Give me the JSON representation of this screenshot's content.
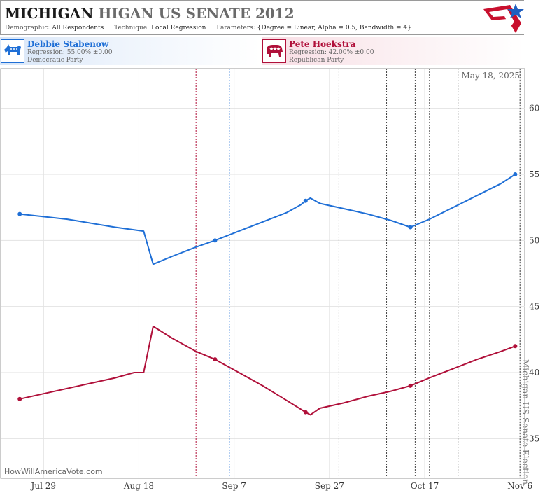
{
  "header": {
    "title_main": "MICHIGAN",
    "title_sub": "HIGAN US SENATE 2012",
    "demographic_label": "Demographic:",
    "demographic_value": "All Respondents",
    "technique_label": "Technique:",
    "technique_value": "Local Regression",
    "parameters_label": "Parameters:",
    "parameters_value": "{Degree = Linear, Alpha = 0.5, Bandwidth = 4}"
  },
  "candidates": [
    {
      "name": "Debbie Stabenow",
      "regression": "Regression: 55.00% ±0.00",
      "party": "Democratic Party",
      "color": "#1f6fd6",
      "icon": "donkey-icon"
    },
    {
      "name": "Pete Hoekstra",
      "regression": "Regression: 42.00% ±0.00",
      "party": "Republican Party",
      "color": "#b0103a",
      "icon": "elephant-icon"
    }
  ],
  "chart_data": {
    "type": "line",
    "date_label": "May 18, 2025",
    "event_label": "Michigan US Senate Election",
    "watermark": "HowWillAmericaVote.com",
    "x_range": [
      "2012-07-20",
      "2012-11-07"
    ],
    "x_ticks": [
      {
        "date": "2012-07-29",
        "label": "Jul 29"
      },
      {
        "date": "2012-08-18",
        "label": "Aug 18"
      },
      {
        "date": "2012-09-07",
        "label": "Sep 7"
      },
      {
        "date": "2012-09-27",
        "label": "Sep 27"
      },
      {
        "date": "2012-10-17",
        "label": "Oct 17"
      },
      {
        "date": "2012-11-06",
        "label": "Nov 6"
      }
    ],
    "y_range": [
      32,
      63
    ],
    "y_ticks": [
      35,
      40,
      45,
      50,
      55,
      60
    ],
    "grid": true,
    "vlines": [
      {
        "date": "2012-08-30",
        "color": "#b0103a",
        "style": "dotted"
      },
      {
        "date": "2012-09-06",
        "color": "#1f6fd6",
        "style": "dotted"
      },
      {
        "date": "2012-09-29",
        "color": "#444444",
        "style": "dotted"
      },
      {
        "date": "2012-10-09",
        "color": "#444444",
        "style": "dotted"
      },
      {
        "date": "2012-10-15",
        "color": "#444444",
        "style": "dotted"
      },
      {
        "date": "2012-10-18",
        "color": "#444444",
        "style": "dotted"
      },
      {
        "date": "2012-10-24",
        "color": "#444444",
        "style": "dotted"
      },
      {
        "date": "2012-11-06",
        "color": "#444444",
        "style": "dotted"
      }
    ],
    "series": [
      {
        "name": "Debbie Stabenow",
        "color": "#1f6fd6",
        "line": [
          [
            "2012-07-24",
            52.0
          ],
          [
            "2012-07-29",
            51.8
          ],
          [
            "2012-08-03",
            51.6
          ],
          [
            "2012-08-08",
            51.3
          ],
          [
            "2012-08-13",
            51.0
          ],
          [
            "2012-08-17",
            50.8
          ],
          [
            "2012-08-19",
            50.7
          ],
          [
            "2012-08-21",
            48.2
          ],
          [
            "2012-08-25",
            48.8
          ],
          [
            "2012-08-30",
            49.5
          ],
          [
            "2012-09-03",
            50.0
          ],
          [
            "2012-09-08",
            50.7
          ],
          [
            "2012-09-13",
            51.4
          ],
          [
            "2012-09-18",
            52.1
          ],
          [
            "2012-09-21",
            52.7
          ],
          [
            "2012-09-22",
            53.0
          ],
          [
            "2012-09-23",
            53.2
          ],
          [
            "2012-09-25",
            52.8
          ],
          [
            "2012-09-30",
            52.4
          ],
          [
            "2012-10-05",
            52.0
          ],
          [
            "2012-10-10",
            51.5
          ],
          [
            "2012-10-14",
            51.0
          ],
          [
            "2012-10-18",
            51.6
          ],
          [
            "2012-10-23",
            52.5
          ],
          [
            "2012-10-28",
            53.4
          ],
          [
            "2012-11-02",
            54.3
          ],
          [
            "2012-11-05",
            55.0
          ]
        ],
        "points": [
          [
            "2012-07-24",
            52.0
          ],
          [
            "2012-09-03",
            50.0
          ],
          [
            "2012-09-22",
            53.0
          ],
          [
            "2012-10-14",
            51.0
          ],
          [
            "2012-11-05",
            55.0
          ]
        ]
      },
      {
        "name": "Pete Hoekstra",
        "color": "#b0103a",
        "line": [
          [
            "2012-07-24",
            38.0
          ],
          [
            "2012-07-29",
            38.4
          ],
          [
            "2012-08-03",
            38.8
          ],
          [
            "2012-08-08",
            39.2
          ],
          [
            "2012-08-13",
            39.6
          ],
          [
            "2012-08-17",
            40.0
          ],
          [
            "2012-08-19",
            40.0
          ],
          [
            "2012-08-21",
            43.5
          ],
          [
            "2012-08-25",
            42.6
          ],
          [
            "2012-08-30",
            41.6
          ],
          [
            "2012-09-03",
            41.0
          ],
          [
            "2012-09-08",
            40.0
          ],
          [
            "2012-09-13",
            39.0
          ],
          [
            "2012-09-18",
            37.9
          ],
          [
            "2012-09-22",
            37.0
          ],
          [
            "2012-09-23",
            36.8
          ],
          [
            "2012-09-25",
            37.3
          ],
          [
            "2012-09-30",
            37.7
          ],
          [
            "2012-10-05",
            38.2
          ],
          [
            "2012-10-10",
            38.6
          ],
          [
            "2012-10-14",
            39.0
          ],
          [
            "2012-10-18",
            39.6
          ],
          [
            "2012-10-23",
            40.3
          ],
          [
            "2012-10-28",
            41.0
          ],
          [
            "2012-11-02",
            41.6
          ],
          [
            "2012-11-05",
            42.0
          ]
        ],
        "points": [
          [
            "2012-07-24",
            38.0
          ],
          [
            "2012-09-03",
            41.0
          ],
          [
            "2012-09-22",
            37.0
          ],
          [
            "2012-10-14",
            39.0
          ],
          [
            "2012-11-05",
            42.0
          ]
        ]
      }
    ]
  }
}
